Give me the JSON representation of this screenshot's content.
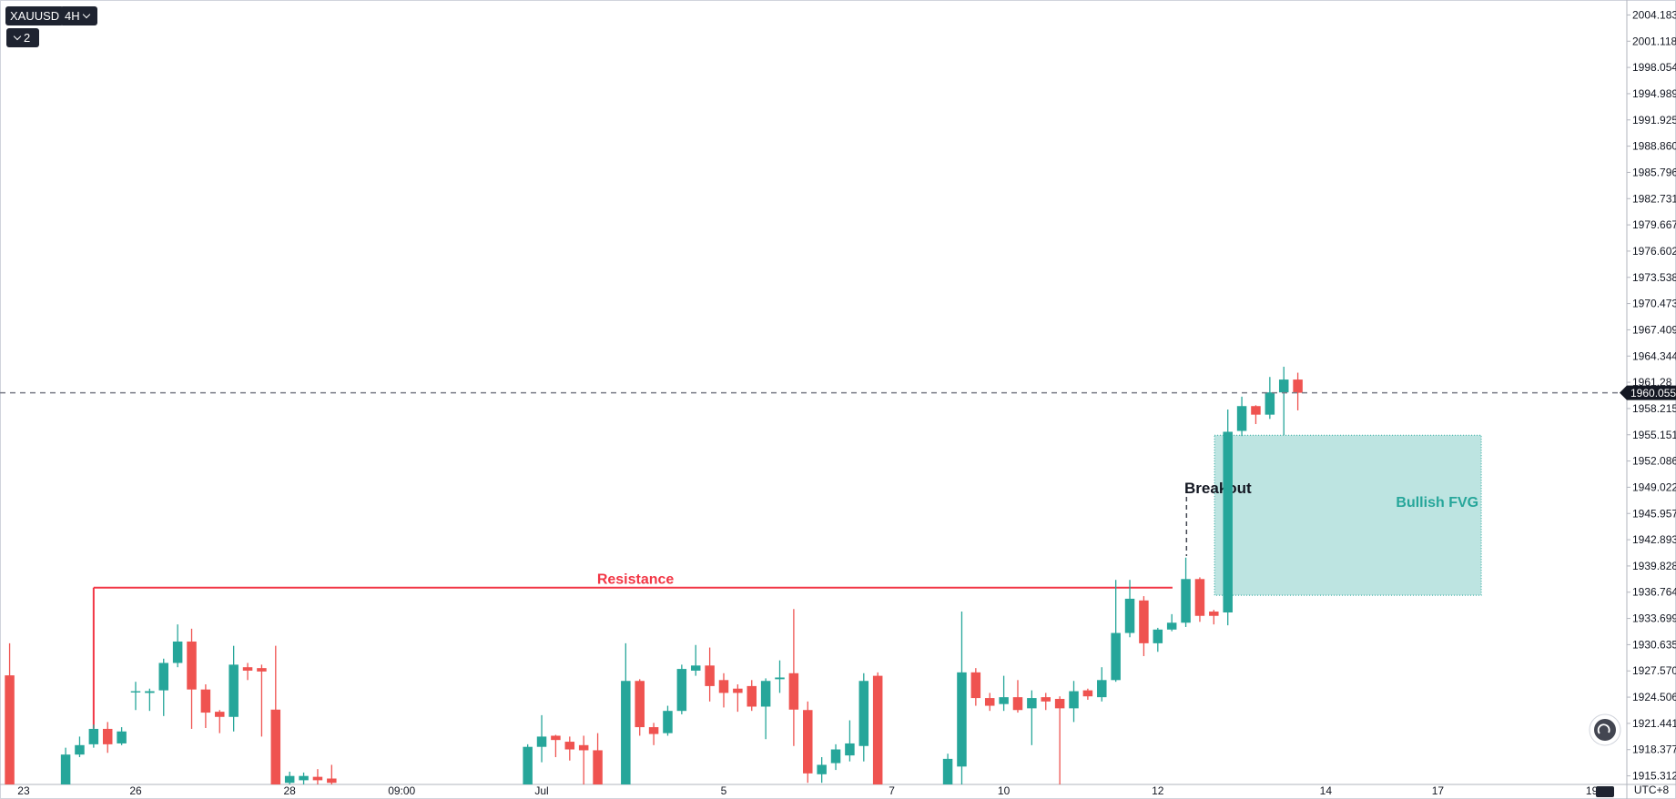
{
  "chart_data": {
    "type": "candlestick",
    "symbol": "XAUUSD",
    "interval": "4H",
    "indicator_count": 2,
    "timezone": "UTC+8",
    "up_color": "#26a69a",
    "down_color": "#ef5350",
    "categories": [
      null,
      "23",
      null,
      null,
      null,
      null,
      null,
      null,
      null,
      "26",
      null,
      null,
      null,
      null,
      null,
      null,
      null,
      null,
      null,
      null,
      "28",
      null,
      null,
      null,
      null,
      null,
      null,
      null,
      "09:00",
      null,
      null,
      null,
      null,
      null,
      null,
      null,
      null,
      null,
      "Jul",
      null,
      null,
      null,
      null,
      null,
      null,
      null,
      null,
      null,
      null,
      null,
      null,
      "5",
      null,
      null,
      null,
      null,
      null,
      null,
      null,
      null,
      null,
      null,
      null,
      "7",
      null,
      null,
      null,
      null,
      null,
      null,
      null,
      "10",
      null,
      null,
      null,
      null,
      null,
      null,
      null,
      null,
      null,
      null,
      "12",
      null,
      null,
      null,
      null,
      null,
      null,
      null,
      null,
      null,
      null,
      null,
      "14",
      null,
      null,
      null,
      null,
      null,
      null,
      null,
      "17",
      null,
      null,
      null,
      null,
      null,
      null,
      null,
      null,
      null,
      null,
      "19"
    ],
    "open": [
      1927.05,
      null,
      null,
      null,
      1913.5,
      1917.8,
      1919.0,
      1920.8,
      1919.1,
      1925.05,
      1925.0,
      1925.3,
      1928.5,
      1931.0,
      1925.4,
      1922.8,
      1922.2,
      1928.0,
      1927.9,
      1923.05,
      1914.5,
      1914.8,
      1915.2,
      1915.0,
      null,
      null,
      null,
      null,
      null,
      null,
      null,
      null,
      null,
      null,
      null,
      null,
      null,
      1912,
      1918.7,
      1920.0,
      1919.3,
      1918.9,
      1918.3,
      null,
      1912,
      1926.4,
      1921.0,
      1920.3,
      1922.9,
      1927.6,
      1928.2,
      1926.5,
      1925.5,
      1925.8,
      1923.4,
      1926.6,
      1927.3,
      1923.0,
      1915.5,
      1916.8,
      1917.7,
      1918.8,
      1927.0,
      null,
      null,
      null,
      null,
      1912,
      1916.4,
      1927.4,
      1924.4,
      1923.7,
      1924.5,
      1923.2,
      1924.5,
      1924.3,
      1923.2,
      1925.3,
      1924.5,
      1926.5,
      1932.0,
      1935.8,
      1930.8,
      1932.4,
      1933.2,
      1938.3,
      1934.5,
      1934.4,
      1955.6,
      1958.5,
      1957.5,
      1960.1,
      1961.6,
      null,
      null,
      null,
      null,
      null,
      null,
      null,
      null,
      null,
      null,
      null,
      null,
      null,
      null,
      null,
      null,
      null,
      null,
      null,
      null,
      null
    ],
    "high": [
      1930.8,
      null,
      null,
      null,
      1918.6,
      1919.9,
      1921.3,
      1921.6,
      1921.0,
      1926.3,
      1925.5,
      1929.0,
      1933.0,
      1932.5,
      1926.0,
      1923.0,
      1930.5,
      1928.5,
      1928.3,
      1930.5,
      1915.8,
      1915.7,
      1916.1,
      1916.6,
      null,
      null,
      null,
      null,
      null,
      null,
      null,
      null,
      null,
      null,
      null,
      null,
      null,
      1919.0,
      1922.4,
      1920.1,
      1919.9,
      1920.0,
      1920.3,
      null,
      1930.8,
      1926.6,
      1921.5,
      1923.5,
      1928.3,
      1930.6,
      1930.3,
      1927.3,
      1926.0,
      1926.5,
      1926.7,
      1928.8,
      1934.8,
      1924.0,
      1917.5,
      1919.0,
      1921.8,
      1927.3,
      1927.4,
      null,
      null,
      null,
      null,
      1917.9,
      1934.5,
      1927.9,
      1925.0,
      1927.0,
      1926.5,
      1925.3,
      1925.0,
      1924.6,
      1926.4,
      1925.5,
      1928.0,
      1938.2,
      1938.2,
      1936.3,
      1932.6,
      1934.2,
      1940.8,
      1938.5,
      1934.7,
      1958.1,
      1959.6,
      1958.6,
      1961.9,
      1963.1,
      1962.4,
      null,
      null,
      null,
      null,
      null,
      null,
      null,
      null,
      null,
      null,
      null,
      null,
      null,
      null,
      null,
      null,
      null,
      null,
      null,
      null,
      null
    ],
    "low": [
      1911,
      null,
      null,
      null,
      1912.8,
      1917.5,
      1918.6,
      1918.0,
      1918.9,
      1923.0,
      1922.9,
      1922.3,
      1928.0,
      1920.8,
      1920.9,
      1920.3,
      1920.5,
      1926.5,
      1919.9,
      1911,
      1913,
      1914,
      1914,
      1913,
      null,
      null,
      null,
      null,
      null,
      null,
      null,
      null,
      null,
      null,
      null,
      null,
      null,
      1911,
      1916.9,
      1917.5,
      1917.1,
      1914,
      1911,
      null,
      1911,
      1920.0,
      1918.9,
      1920.0,
      1922.5,
      1927.0,
      1924.0,
      1923.3,
      1922.8,
      1922.9,
      1919.6,
      1925.0,
      1918.8,
      1914.5,
      1914.5,
      1916.0,
      1917.0,
      1917.0,
      1911,
      null,
      null,
      null,
      null,
      1911,
      1914,
      1923.5,
      1922.9,
      1922.9,
      1922.7,
      1918.9,
      1923.0,
      1912,
      1921.6,
      1924.2,
      1924.0,
      1926.3,
      1931.5,
      1929.3,
      1929.8,
      1932.2,
      1932.7,
      1933.3,
      1933.0,
      1932.9,
      1955.0,
      1956.4,
      1957.0,
      1955.1,
      1958.0,
      null,
      null,
      null,
      null,
      null,
      null,
      null,
      null,
      null,
      null,
      null,
      null,
      null,
      null,
      null,
      null,
      null,
      null,
      null,
      null,
      null
    ],
    "close": [
      1912.5,
      null,
      null,
      null,
      1917.8,
      1918.9,
      1920.8,
      1919.0,
      1920.5,
      1925.2,
      1925.2,
      1928.5,
      1931.0,
      1925.4,
      1922.7,
      1922.2,
      1928.3,
      1927.6,
      1927.5,
      1912,
      1915.3,
      1915.3,
      1914.8,
      1914.5,
      null,
      null,
      null,
      null,
      null,
      null,
      null,
      null,
      null,
      null,
      null,
      null,
      null,
      1918.7,
      1919.9,
      1919.5,
      1918.4,
      1918.3,
      1912,
      null,
      1926.4,
      1921.0,
      1920.2,
      1922.9,
      1927.8,
      1928.2,
      1925.8,
      1925.0,
      1925.0,
      1923.4,
      1926.4,
      1926.8,
      1923.05,
      1915.6,
      1916.6,
      1918.4,
      1919.1,
      1926.4,
      1912,
      null,
      null,
      null,
      null,
      1917.3,
      1927.4,
      1924.4,
      1923.5,
      1924.5,
      1923.0,
      1924.4,
      1924.0,
      1923.2,
      1925.2,
      1924.6,
      1926.5,
      1932.0,
      1936.0,
      1930.8,
      1932.4,
      1933.2,
      1938.3,
      1934.0,
      1934.0,
      1955.5,
      1958.5,
      1957.5,
      1960.1,
      1961.6,
      1960.055,
      null,
      null,
      null,
      null,
      null,
      null,
      null,
      null,
      null,
      null,
      null,
      null,
      null,
      null,
      null,
      null,
      null,
      null,
      null,
      null,
      null
    ],
    "last_price": 1960.055,
    "ylim": [
      1914.31,
      2005.93
    ],
    "yticks": [
      1915.312,
      1918.377,
      1921.441,
      1924.506,
      {
        "value": 1927.57,
        "label": "1927.570"
      },
      1930.635,
      1933.699,
      1936.764,
      1939.828,
      1942.893,
      1945.957,
      1949.022,
      1952.086,
      1955.151,
      1958.215,
      1961.28,
      1964.344,
      1967.409,
      1970.473,
      1973.538,
      1976.602,
      1979.667,
      1982.731,
      1985.796,
      {
        "value": 1988.86,
        "label": "1988.860"
      },
      1991.925,
      1994.989,
      1998.054,
      2001.118,
      2004.183
    ],
    "annotations": {
      "resistance": {
        "label": "Resistance",
        "price": 1937.3,
        "color": "#f23645"
      },
      "breakout": {
        "label": "Breakout"
      },
      "fvg": {
        "label": "Bullish FVG",
        "top": 1955.1,
        "bottom": 1936.4,
        "color": "#26a69a"
      }
    }
  }
}
